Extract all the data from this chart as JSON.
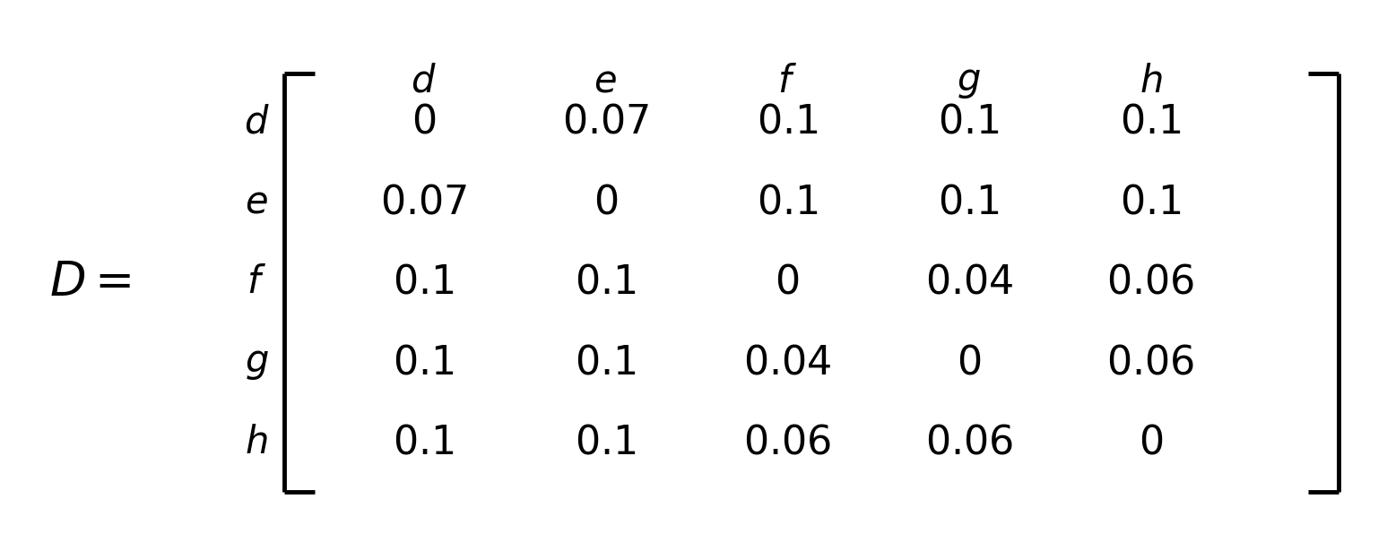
{
  "title_label": "D =",
  "col_labels": [
    "d",
    "e",
    "f",
    "g",
    "h"
  ],
  "row_labels": [
    "d",
    "e",
    "f",
    "g",
    "h"
  ],
  "matrix": [
    [
      "0",
      "0.07",
      "0.1",
      "0.1",
      "0.1"
    ],
    [
      "0.07",
      "0",
      "0.1",
      "0.1",
      "0.1"
    ],
    [
      "0.1",
      "0.1",
      "0",
      "0.04",
      "0.06"
    ],
    [
      "0.1",
      "0.1",
      "0.04",
      "0",
      "0.06"
    ],
    [
      "0.1",
      "0.1",
      "0.06",
      "0.06",
      "0"
    ]
  ],
  "bg_color": "#ffffff",
  "text_color": "#000000",
  "font_size_matrix": 32,
  "font_size_labels": 30,
  "font_size_title": 38,
  "font_size_bracket": 120
}
